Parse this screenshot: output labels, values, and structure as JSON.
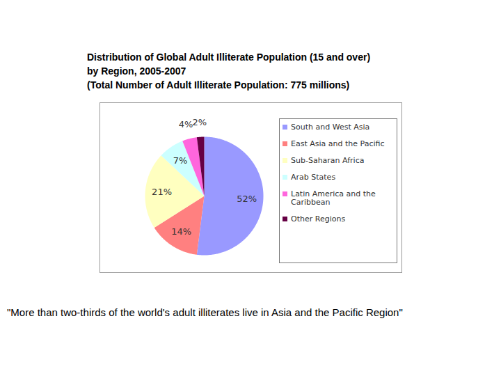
{
  "chart_data": {
    "type": "pie",
    "title": "Distribution of Global Adult Illiterate Population (15 and over)\nby Region, 2005-2007",
    "subtitle": "(Total Number of Adult Illiterate Population: 775 millions)",
    "categories": [
      "South and West Asia",
      "East Asia and the Pacific",
      "Sub-Saharan Africa",
      "Arab States",
      "Latin America and the Caribbean",
      "Other Regions"
    ],
    "values": [
      52,
      14,
      21,
      7,
      4,
      2
    ],
    "value_labels": [
      "52%",
      "14%",
      "21%",
      "7%",
      "4%",
      "2%"
    ],
    "colors": [
      "#9999ff",
      "#ff8080",
      "#ffffc0",
      "#ccffff",
      "#ff66dd",
      "#660044"
    ],
    "data_labels": true,
    "legend": "right",
    "annotation": "\"More than two-thirds of the world's adult illiterates live in Asia and the Pacific Region\""
  }
}
